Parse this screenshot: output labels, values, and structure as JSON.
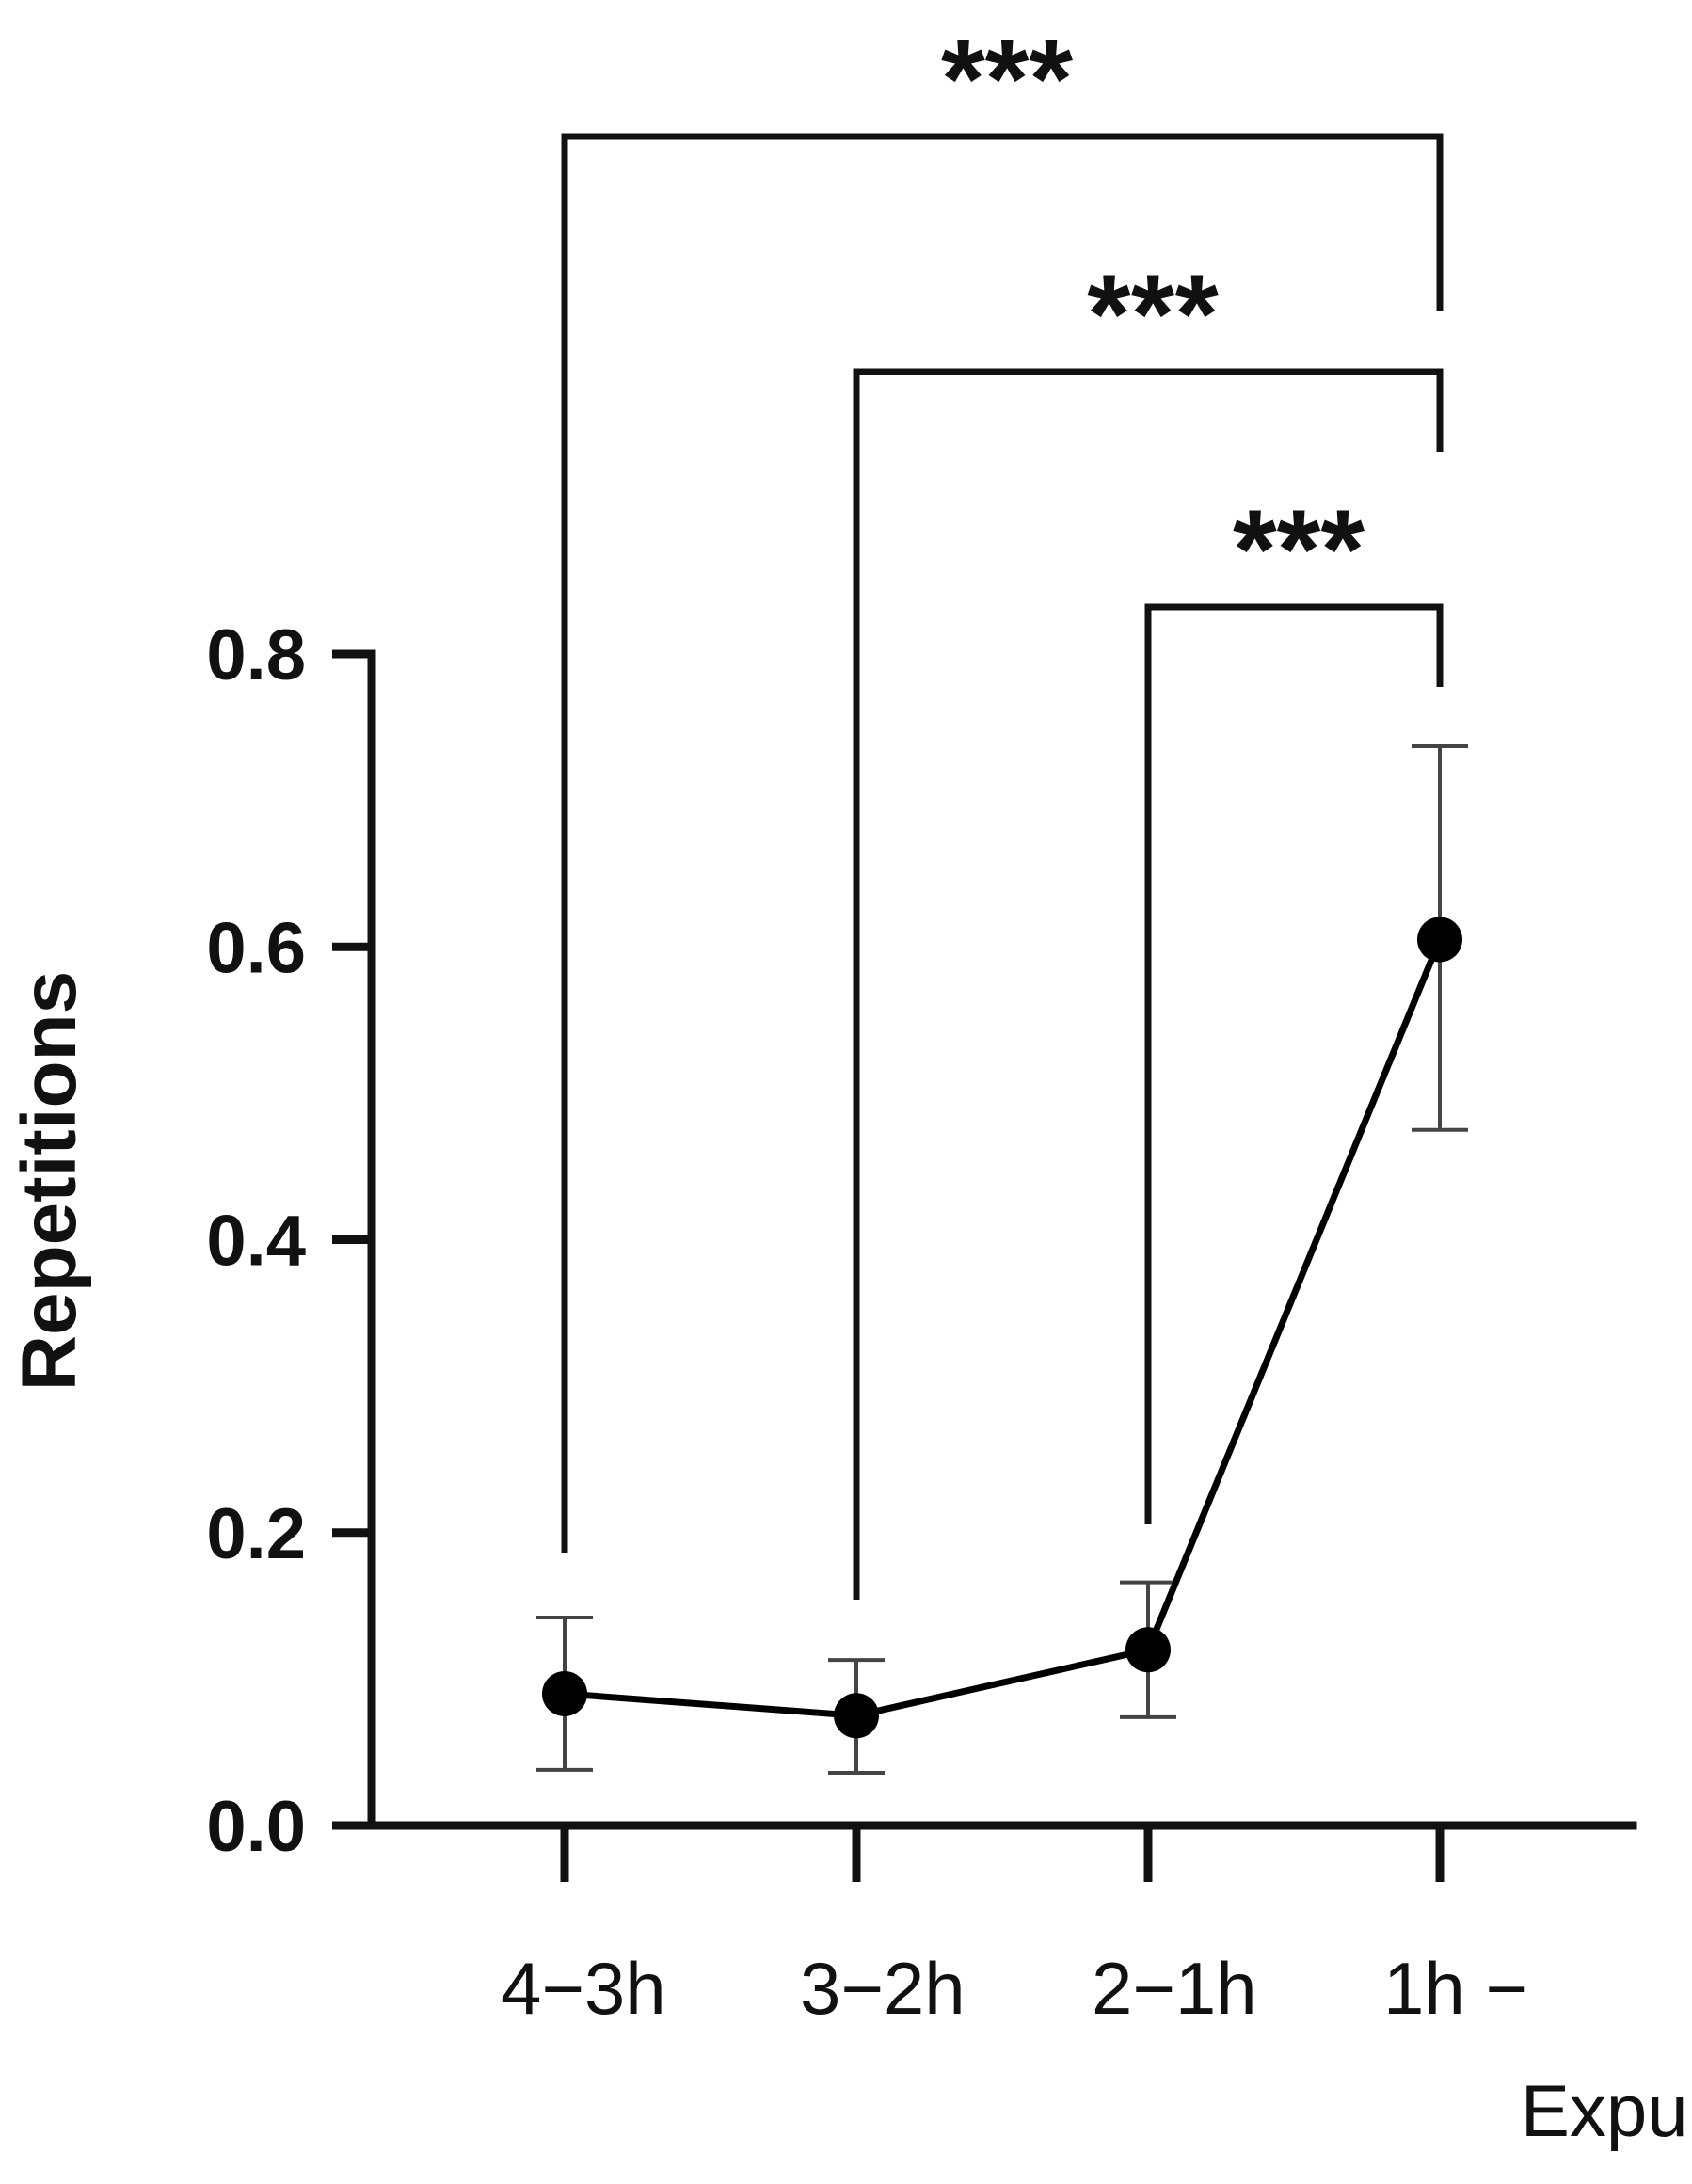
{
  "chart_data": {
    "type": "line",
    "title": "",
    "xlabel": "",
    "ylabel": "Repetitions",
    "ylim": [
      0.0,
      0.8
    ],
    "yticks": [
      "0.0",
      "0.2",
      "0.4",
      "0.6",
      "0.8"
    ],
    "ytick_values": [
      0.0,
      0.2,
      0.4,
      0.6,
      0.8
    ],
    "grid": false,
    "legend": "none",
    "categories": [
      {
        "line1": "4−3h",
        "line2": ""
      },
      {
        "line1": "3−2h",
        "line2": ""
      },
      {
        "line1": "2−1h",
        "line2": ""
      },
      {
        "line1": "1h −",
        "line2": "Expulsion"
      }
    ],
    "series": [
      {
        "values": [
          0.09,
          0.075,
          0.12,
          0.605
        ],
        "error_low": [
          0.038,
          0.036,
          0.074,
          0.475
        ],
        "error_high": [
          0.142,
          0.113,
          0.166,
          0.737
        ]
      }
    ],
    "significance": [
      {
        "from": 0,
        "to": 3,
        "label": "***"
      },
      {
        "from": 1,
        "to": 3,
        "label": "***"
      },
      {
        "from": 2,
        "to": 3,
        "label": "***"
      }
    ],
    "colors": {
      "line": "#000000",
      "marker": "#000000",
      "error_bar": "#444444",
      "axis": "#111111"
    }
  }
}
